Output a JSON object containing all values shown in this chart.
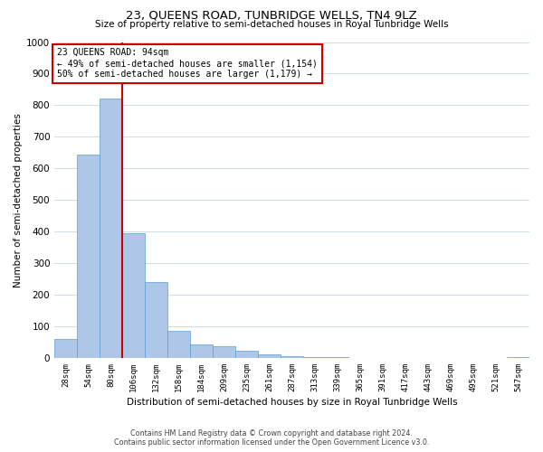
{
  "title": "23, QUEENS ROAD, TUNBRIDGE WELLS, TN4 9LZ",
  "subtitle": "Size of property relative to semi-detached houses in Royal Tunbridge Wells",
  "xlabel": "Distribution of semi-detached houses by size in Royal Tunbridge Wells",
  "ylabel": "Number of semi-detached properties",
  "footnote1": "Contains HM Land Registry data © Crown copyright and database right 2024.",
  "footnote2": "Contains public sector information licensed under the Open Government Licence v3.0.",
  "bar_labels": [
    "28sqm",
    "54sqm",
    "80sqm",
    "106sqm",
    "132sqm",
    "158sqm",
    "184sqm",
    "209sqm",
    "235sqm",
    "261sqm",
    "287sqm",
    "313sqm",
    "339sqm",
    "365sqm",
    "391sqm",
    "417sqm",
    "443sqm",
    "469sqm",
    "495sqm",
    "521sqm",
    "547sqm"
  ],
  "bar_values": [
    60,
    645,
    820,
    395,
    240,
    85,
    42,
    37,
    22,
    12,
    5,
    4,
    2,
    1,
    0,
    1,
    0,
    0,
    0,
    0,
    3
  ],
  "bar_color": "#aec6e8",
  "bar_edge_color": "#5a9fd4",
  "property_line_x": 2.5,
  "property_line_color": "#cc0000",
  "ylim": [
    0,
    1000
  ],
  "yticks": [
    0,
    100,
    200,
    300,
    400,
    500,
    600,
    700,
    800,
    900,
    1000
  ],
  "annotation_title": "23 QUEENS ROAD: 94sqm",
  "annotation_line1": "← 49% of semi-detached houses are smaller (1,154)",
  "annotation_line2": "50% of semi-detached houses are larger (1,179) →",
  "annotation_box_color": "#ffffff",
  "annotation_box_edge_color": "#cc0000",
  "grid_color": "#ccdde8"
}
